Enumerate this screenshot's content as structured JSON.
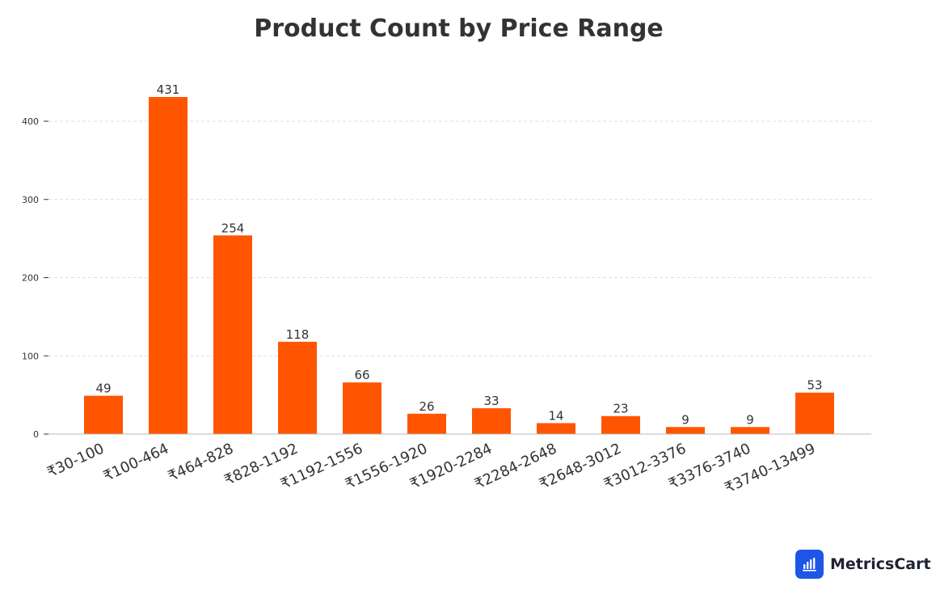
{
  "chart_data": {
    "type": "bar",
    "title": "Product Count by Price Range",
    "xlabel": "",
    "ylabel": "",
    "categories": [
      "₹30-100",
      "₹100-464",
      "₹464-828",
      "₹828-1192",
      "₹1192-1556",
      "₹1556-1920",
      "₹1920-2284",
      "₹2284-2648",
      "₹2648-3012",
      "₹3012-3376",
      "₹3376-3740",
      "₹3740-13499"
    ],
    "values": [
      49,
      431,
      254,
      118,
      66,
      26,
      33,
      14,
      23,
      9,
      9,
      53
    ],
    "yticks": [
      0,
      100,
      200,
      300,
      400
    ],
    "ylim": [
      0,
      448
    ],
    "grid": true,
    "bar_color": "#ff5500",
    "data_labels": true
  },
  "brand": {
    "name": "MetricsCart",
    "icon": "bar-chart-icon",
    "color": "#1d55e6"
  }
}
